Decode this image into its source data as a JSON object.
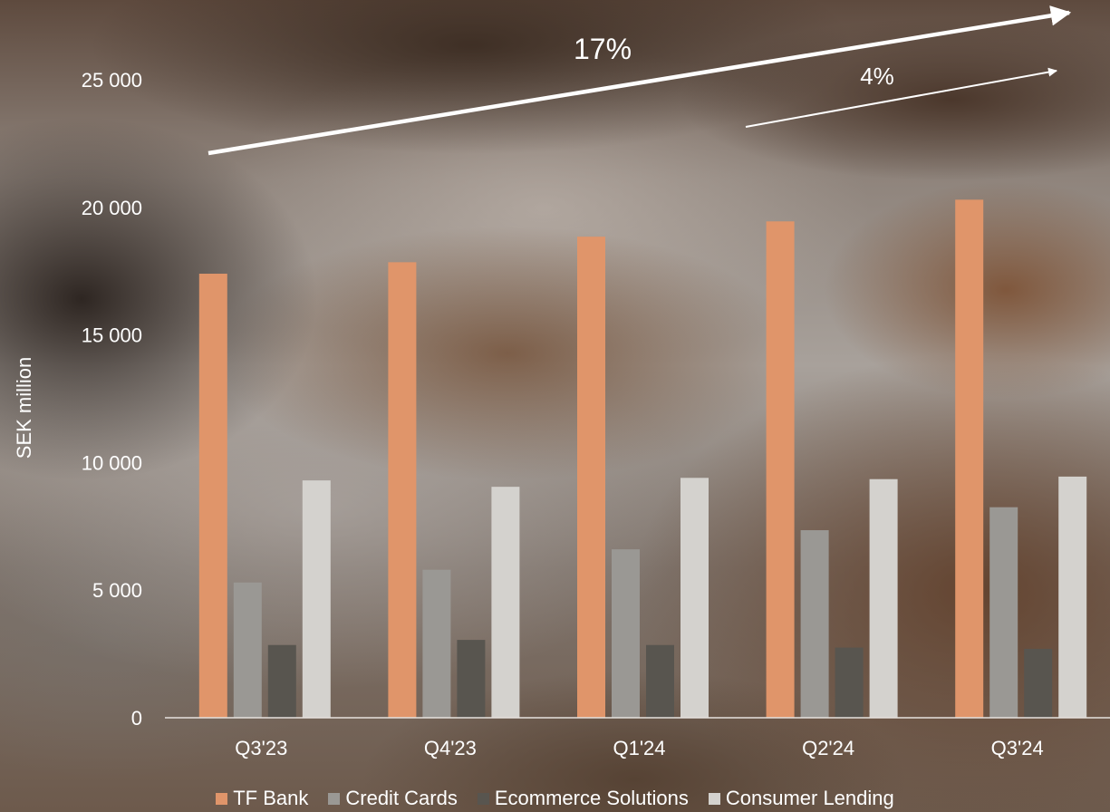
{
  "chart_data": {
    "type": "bar",
    "ylabel": "SEK million",
    "ylim": [
      0,
      25000
    ],
    "yticks": [
      0,
      5000,
      10000,
      15000,
      20000,
      25000
    ],
    "ytick_labels": [
      "0",
      "5 000",
      "10 000",
      "15 000",
      "20 000",
      "25 000"
    ],
    "categories": [
      "Q3'23",
      "Q4'23",
      "Q1'24",
      "Q2'24",
      "Q3'24"
    ],
    "series": [
      {
        "name": "TF Bank",
        "color": "#e0956a",
        "values": [
          17400,
          17850,
          18850,
          19450,
          20300
        ]
      },
      {
        "name": "Credit Cards",
        "color": "#9a9894",
        "values": [
          5300,
          5800,
          6600,
          7350,
          8250
        ]
      },
      {
        "name": "Ecommerce Solutions",
        "color": "#58554f",
        "values": [
          2850,
          3050,
          2850,
          2750,
          2700
        ]
      },
      {
        "name": "Consumer Lending",
        "color": "#d4d2ce",
        "values": [
          9300,
          9050,
          9400,
          9350,
          9450
        ]
      }
    ],
    "grid": false,
    "legend_position": "bottom",
    "annotations": [
      {
        "text": "17%",
        "from_category": "Q3'23",
        "to_category": "Q3'24",
        "series": "TF Bank"
      },
      {
        "text": "4%",
        "from_category": "Q2'24",
        "to_category": "Q3'24",
        "series": "TF Bank"
      }
    ]
  }
}
